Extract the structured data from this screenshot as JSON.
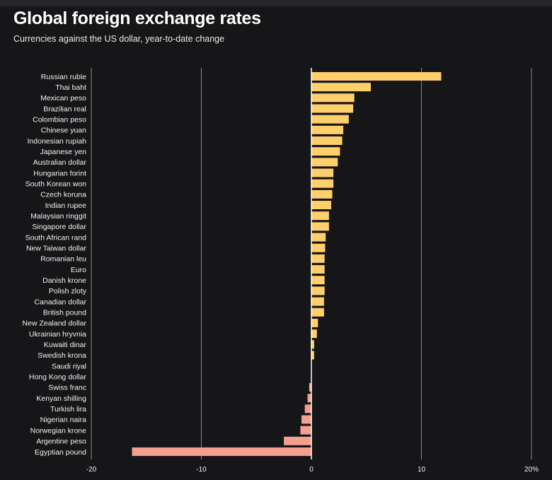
{
  "chart_data": {
    "type": "bar",
    "orientation": "horizontal",
    "title": "Global foreign exchange rates",
    "subtitle": "Currencies against the US dollar, year-to-date change",
    "xlim": [
      -20,
      20
    ],
    "x_ticks": [
      -20,
      -10,
      0,
      10,
      20
    ],
    "x_tick_labels": [
      "-20",
      "-10",
      "0",
      "10",
      "20%"
    ],
    "grid": true,
    "colors": {
      "positive": "#ffcf6b",
      "negative": "#f4a090",
      "background": "#161618",
      "grid": "#8a8a8a",
      "zero_line": "#ffffff"
    },
    "categories": [
      "Russian ruble",
      "Thai baht",
      "Mexican peso",
      "Brazilian real",
      "Colombian peso",
      "Chinese yuan",
      "Indonesian rupiah",
      "Japanese yen",
      "Australian dollar",
      "Hungarian forint",
      "South Korean won",
      "Czech koruna",
      "Indian rupee",
      "Malaysian ringgit",
      "Singapore dollar",
      "South African rand",
      "New Taiwan dollar",
      "Romanian leu",
      "Euro",
      "Danish krone",
      "Polish zloty",
      "Canadian dollar",
      "British pound",
      "New Zealand dollar",
      "Ukrainian hryvnia",
      "Kuwaiti dinar",
      "Swedish krona",
      "Saudi riyal",
      "Hong Kong dollar",
      "Swiss franc",
      "Kenyan shilling",
      "Turkish lira",
      "Nigerian naira",
      "Norwegian krone",
      "Argentine peso",
      "Egyptian pound"
    ],
    "values": [
      11.8,
      5.4,
      3.9,
      3.8,
      3.4,
      2.9,
      2.8,
      2.6,
      2.4,
      2.0,
      2.0,
      1.9,
      1.8,
      1.6,
      1.6,
      1.3,
      1.25,
      1.2,
      1.2,
      1.2,
      1.2,
      1.15,
      1.15,
      0.6,
      0.5,
      0.25,
      0.25,
      0.0,
      0.0,
      -0.2,
      -0.35,
      -0.6,
      -0.9,
      -1.0,
      -2.5,
      -16.3
    ]
  }
}
